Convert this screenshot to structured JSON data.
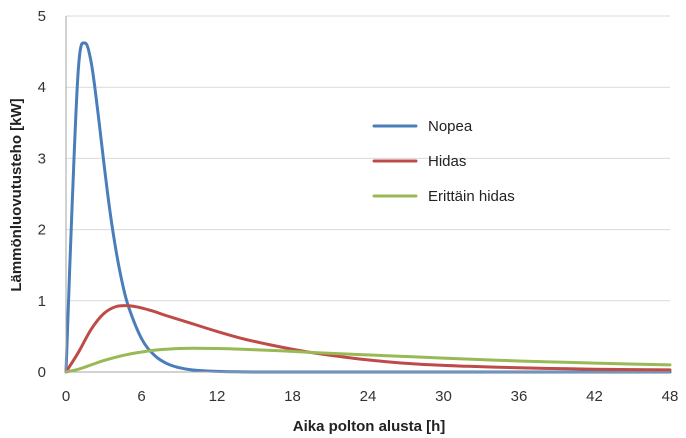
{
  "chart_data": {
    "type": "line",
    "title": "",
    "xlabel": "Aika polton alusta [h]",
    "ylabel": "Lämmönluovutusteho [kW]",
    "xlim": [
      0,
      48
    ],
    "ylim": [
      0,
      5
    ],
    "xticks": [
      0,
      6,
      12,
      18,
      24,
      30,
      36,
      42,
      48
    ],
    "yticks": [
      0,
      1,
      2,
      3,
      4,
      5
    ],
    "grid": true,
    "legend_position": "center-right",
    "series": [
      {
        "name": "Nopea",
        "color": "#4a7ebb",
        "x": [
          0,
          0.5,
          1,
          1.5,
          2,
          2.5,
          3,
          3.5,
          4,
          4.5,
          5,
          6,
          7,
          8,
          9,
          10,
          12,
          14,
          16,
          18,
          20,
          24,
          30,
          36,
          42,
          48
        ],
        "y": [
          0,
          2.4,
          4.3,
          4.62,
          4.35,
          3.7,
          2.95,
          2.25,
          1.68,
          1.23,
          0.9,
          0.47,
          0.24,
          0.12,
          0.06,
          0.03,
          0.008,
          0.002,
          0,
          0,
          0,
          0,
          0,
          0,
          0,
          0
        ]
      },
      {
        "name": "Hidas",
        "color": "#be4b48",
        "x": [
          0,
          1,
          2,
          3,
          4,
          5,
          6,
          7,
          8,
          10,
          12,
          14,
          16,
          18,
          20,
          24,
          28,
          32,
          36,
          40,
          44,
          48
        ],
        "y": [
          0,
          0.28,
          0.6,
          0.82,
          0.92,
          0.93,
          0.9,
          0.85,
          0.79,
          0.68,
          0.57,
          0.47,
          0.39,
          0.32,
          0.26,
          0.17,
          0.11,
          0.08,
          0.06,
          0.045,
          0.035,
          0.03
        ]
      },
      {
        "name": "Erittäin hidas",
        "color": "#98b954",
        "x": [
          0,
          1,
          2,
          3,
          4,
          5,
          6,
          7,
          8,
          9,
          10,
          12,
          14,
          16,
          18,
          20,
          24,
          28,
          32,
          36,
          40,
          44,
          48
        ],
        "y": [
          0,
          0.04,
          0.1,
          0.16,
          0.21,
          0.25,
          0.28,
          0.305,
          0.32,
          0.33,
          0.333,
          0.33,
          0.32,
          0.305,
          0.29,
          0.27,
          0.24,
          0.21,
          0.18,
          0.155,
          0.135,
          0.115,
          0.1
        ]
      }
    ]
  }
}
